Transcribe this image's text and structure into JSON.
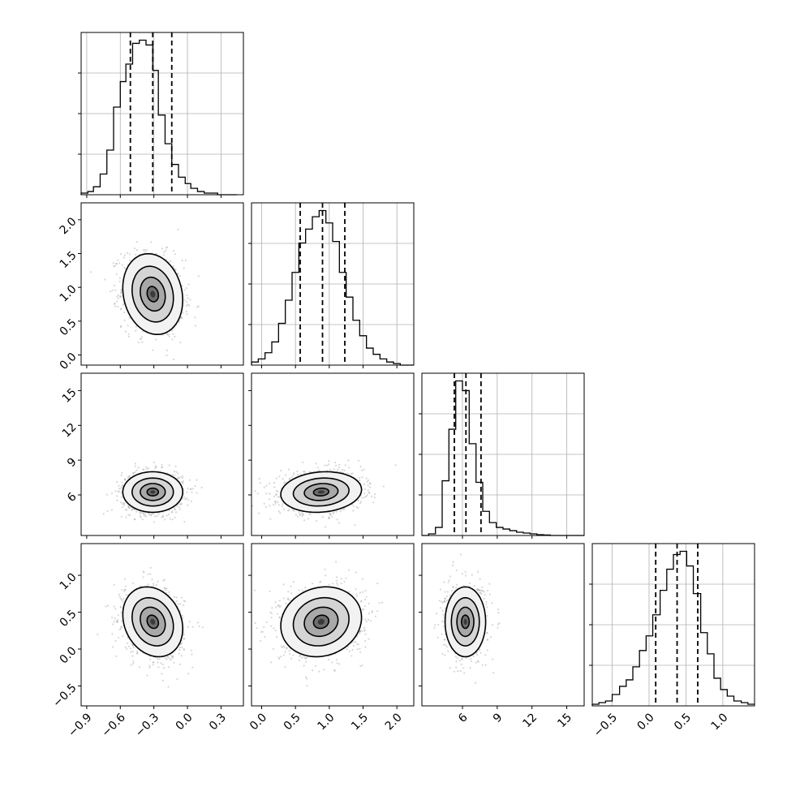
{
  "chart_data": {
    "type": "corner",
    "grid": true,
    "variables": [
      {
        "range": [
          -0.95,
          0.5
        ],
        "ticks": [
          -0.9,
          -0.6,
          -0.3,
          0.0,
          0.3
        ],
        "tick_labels": [
          "−0.9",
          "−0.6",
          "−0.3",
          "0.0",
          "0.3"
        ]
      },
      {
        "range": [
          -0.15,
          2.25
        ],
        "ticks": [
          0.0,
          0.5,
          1.0,
          1.5,
          2.0
        ],
        "tick_labels": [
          "0.0",
          "0.5",
          "1.0",
          "1.5",
          "2.0"
        ]
      },
      {
        "range": [
          2.5,
          16.5
        ],
        "ticks": [
          6,
          9,
          12,
          15
        ],
        "tick_labels": [
          "6",
          "9",
          "12",
          "15"
        ]
      },
      {
        "range": [
          -0.77,
          1.43
        ],
        "ticks": [
          -0.5,
          0.0,
          0.5,
          1.0
        ],
        "tick_labels": [
          "−0.5",
          "0.0",
          "0.5",
          "1.0"
        ]
      }
    ],
    "histograms": [
      {
        "quantiles": [
          -0.51,
          -0.31,
          -0.14
        ],
        "bin_edges": [
          -0.95,
          -0.89,
          -0.84,
          -0.78,
          -0.72,
          -0.66,
          -0.6,
          -0.55,
          -0.49,
          -0.43,
          -0.37,
          -0.31,
          -0.26,
          -0.2,
          -0.14,
          -0.08,
          -0.02,
          0.03,
          0.09,
          0.15,
          0.21,
          0.27,
          0.32,
          0.38,
          0.44
        ],
        "counts": [
          0.01,
          0.02,
          0.05,
          0.13,
          0.28,
          0.55,
          0.71,
          0.82,
          0.95,
          0.97,
          0.94,
          0.78,
          0.5,
          0.32,
          0.19,
          0.11,
          0.07,
          0.04,
          0.02,
          0.01,
          0.01,
          0.0,
          0.0,
          0.0
        ]
      },
      {
        "quantiles": [
          0.57,
          0.9,
          1.23
        ],
        "bin_edges": [
          -0.15,
          -0.05,
          0.05,
          0.15,
          0.25,
          0.35,
          0.45,
          0.55,
          0.65,
          0.75,
          0.85,
          0.95,
          1.05,
          1.15,
          1.25,
          1.35,
          1.45,
          1.55,
          1.65,
          1.75,
          1.85,
          1.95,
          2.05,
          2.15,
          2.25
        ],
        "counts": [
          0.02,
          0.04,
          0.08,
          0.15,
          0.27,
          0.42,
          0.6,
          0.79,
          0.88,
          0.96,
          1.0,
          0.92,
          0.8,
          0.6,
          0.44,
          0.29,
          0.19,
          0.11,
          0.07,
          0.04,
          0.02,
          0.01,
          0.0,
          0.0
        ]
      },
      {
        "quantiles": [
          5.3,
          6.3,
          7.6
        ],
        "bin_edges": [
          2.5,
          3.08,
          3.67,
          4.25,
          4.83,
          5.42,
          6.0,
          6.58,
          7.17,
          7.75,
          8.33,
          8.92,
          9.5,
          10.08,
          10.67,
          11.25,
          11.83,
          12.42,
          13.0,
          13.58,
          14.17,
          14.75,
          15.33,
          15.92,
          16.5
        ],
        "counts": [
          0.0,
          0.01,
          0.05,
          0.34,
          0.66,
          0.96,
          0.9,
          0.57,
          0.33,
          0.15,
          0.08,
          0.05,
          0.04,
          0.03,
          0.02,
          0.015,
          0.01,
          0.005,
          0.003,
          0.0,
          0.0,
          0.0,
          0.0,
          0.0
        ]
      },
      {
        "quantiles": [
          0.09,
          0.38,
          0.66
        ],
        "bin_edges": [
          -0.77,
          -0.68,
          -0.59,
          -0.5,
          -0.4,
          -0.31,
          -0.22,
          -0.13,
          -0.04,
          0.05,
          0.15,
          0.24,
          0.33,
          0.42,
          0.51,
          0.6,
          0.7,
          0.79,
          0.88,
          0.97,
          1.06,
          1.15,
          1.25,
          1.34,
          1.43
        ],
        "counts": [
          0.01,
          0.02,
          0.03,
          0.07,
          0.12,
          0.16,
          0.24,
          0.34,
          0.43,
          0.56,
          0.71,
          0.84,
          0.93,
          0.95,
          0.86,
          0.69,
          0.45,
          0.32,
          0.17,
          0.1,
          0.06,
          0.03,
          0.02,
          0.01
        ]
      }
    ],
    "pairs": [
      {
        "x": 0,
        "y": 1,
        "mean": [
          -0.31,
          0.9
        ],
        "sd": [
          0.13,
          0.29
        ],
        "rho": -0.15
      },
      {
        "x": 0,
        "y": 2,
        "mean": [
          -0.31,
          6.25
        ],
        "sd": [
          0.13,
          0.85
        ],
        "rho": 0.0
      },
      {
        "x": 1,
        "y": 2,
        "mean": [
          0.88,
          6.25
        ],
        "sd": [
          0.29,
          0.85
        ],
        "rho": 0.12
      },
      {
        "x": 0,
        "y": 3,
        "mean": [
          -0.31,
          0.37
        ],
        "sd": [
          0.13,
          0.23
        ],
        "rho": -0.2
      },
      {
        "x": 1,
        "y": 3,
        "mean": [
          0.88,
          0.37
        ],
        "sd": [
          0.29,
          0.23
        ],
        "rho": 0.12
      },
      {
        "x": 2,
        "y": 3,
        "mean": [
          6.25,
          0.37
        ],
        "sd": [
          0.85,
          0.23
        ],
        "rho": 0.0
      }
    ]
  }
}
